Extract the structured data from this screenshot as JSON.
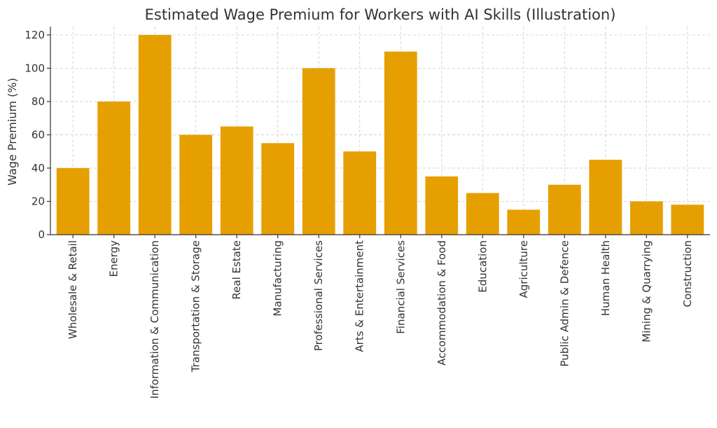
{
  "chart_data": {
    "type": "bar",
    "title": "Estimated Wage Premium for Workers with AI Skills (Illustration)",
    "xlabel": "",
    "ylabel": "Wage Premium (%)",
    "ylim": [
      0,
      125
    ],
    "yticks": [
      0,
      20,
      40,
      60,
      80,
      100,
      120
    ],
    "grid": true,
    "bar_color": "#E69F00",
    "categories": [
      "Wholesale & Retail",
      "Energy",
      "Information & Communication",
      "Transportation & Storage",
      "Real Estate",
      "Manufacturing",
      "Professional Services",
      "Arts & Entertainment",
      "Financial Services",
      "Accommodation & Food",
      "Education",
      "Agriculture",
      "Public Admin & Defence",
      "Human Health",
      "Mining & Quarrying",
      "Construction"
    ],
    "values": [
      40,
      80,
      120,
      60,
      65,
      55,
      100,
      50,
      110,
      35,
      25,
      15,
      30,
      45,
      20,
      18
    ]
  }
}
